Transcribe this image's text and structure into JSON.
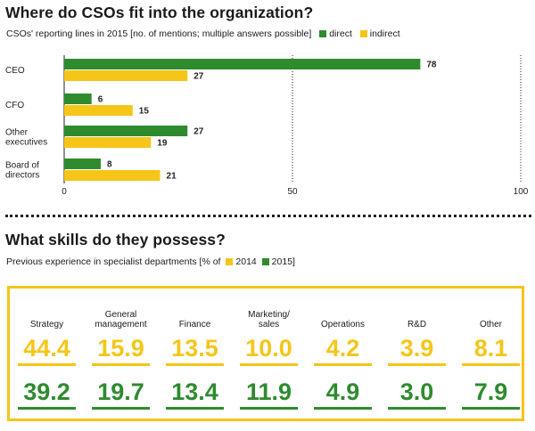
{
  "section1": {
    "title": "Where do CSOs fit into the organization?",
    "subtitle": "CSOs' reporting lines in 2015 [no. of mentions; multiple answers possible]"
  },
  "section2": {
    "title": "What skills do they possess?",
    "subtitle_prefix": "Previous experience in specialist departments [% of",
    "subtitle_suffix": "]"
  },
  "colors": {
    "direct": "#2e8b2e",
    "indirect": "#f5c518"
  },
  "chart_data": [
    {
      "type": "bar",
      "orientation": "horizontal",
      "categories": [
        [
          "CEO"
        ],
        [
          "CFO"
        ],
        [
          "Other",
          "executives"
        ],
        [
          "Board of",
          "directors"
        ]
      ],
      "series": [
        {
          "name": "direct",
          "values": [
            78,
            6,
            27,
            8
          ]
        },
        {
          "name": "indirect",
          "values": [
            27,
            15,
            19,
            21
          ]
        }
      ],
      "xlim": [
        0,
        100
      ],
      "xticks": [
        "0",
        "50",
        "100"
      ],
      "gridlines": [
        50,
        100
      ],
      "legend": "top-right"
    },
    {
      "type": "table",
      "categories": [
        [
          "Strategy"
        ],
        [
          "General",
          "management"
        ],
        [
          "Finance"
        ],
        [
          "Marketing/",
          "sales"
        ],
        [
          "Operations"
        ],
        [
          "R&D"
        ],
        [
          "Other"
        ]
      ],
      "series": [
        {
          "name": "2014",
          "values": [
            "44.4",
            "15.9",
            "13.5",
            "10.0",
            "4.2",
            "3.9",
            "8.1"
          ]
        },
        {
          "name": "2015",
          "values": [
            "39.2",
            "19.7",
            "13.4",
            "11.9",
            "4.9",
            "3.0",
            "7.9"
          ]
        }
      ]
    }
  ]
}
